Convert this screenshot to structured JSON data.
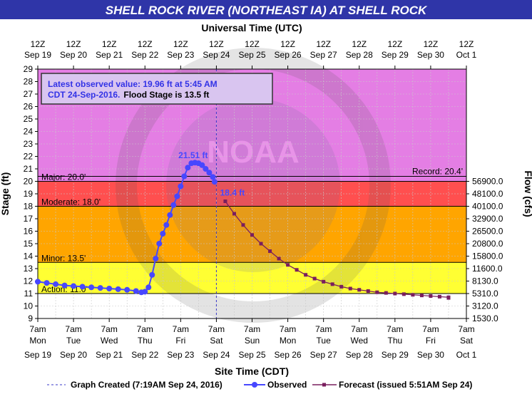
{
  "header": {
    "title": "SHELL ROCK RIVER (NORTHEAST IA) AT SHELL ROCK",
    "top_axis_title": "Universal Time (UTC)",
    "bottom_axis_title": "Site Time (CDT)",
    "left_axis_title": "Stage (ft)",
    "right_axis_title": "Flow (cfs)"
  },
  "info_box": {
    "line1": "Latest observed value: 19.96 ft at 5:45 AM",
    "line2": "CDT 24-Sep-2016.",
    "line2_bold": "Flood Stage is 13.5 ft"
  },
  "legend": {
    "created": "Graph Created (7:19AM Sep 24, 2016)",
    "observed": "Observed",
    "forecast": "Forecast (issued 5:51AM Sep 24)"
  },
  "colors": {
    "title_bg": "#2f35a8",
    "major": "#e47ee4",
    "moderate": "#ff4f4f",
    "minor": "#ffa500",
    "action": "#ffff33",
    "observed": "#4747ff",
    "forecast": "#7a1e5e"
  },
  "chart_data": {
    "type": "line",
    "ylim": [
      9,
      29
    ],
    "y_ticks": [
      9,
      10,
      11,
      12,
      13,
      14,
      15,
      16,
      17,
      18,
      19,
      20,
      21,
      22,
      23,
      24,
      25,
      26,
      27,
      28,
      29
    ],
    "xlim_days": [
      0,
      12
    ],
    "top_ticks": [
      {
        "top": "12Z",
        "bottom": "Sep 19"
      },
      {
        "top": "12Z",
        "bottom": "Sep 20"
      },
      {
        "top": "12Z",
        "bottom": "Sep 21"
      },
      {
        "top": "12Z",
        "bottom": "Sep 22"
      },
      {
        "top": "12Z",
        "bottom": "Sep 23"
      },
      {
        "top": "12Z",
        "bottom": "Sep 24"
      },
      {
        "top": "12Z",
        "bottom": "Sep 25"
      },
      {
        "top": "12Z",
        "bottom": "Sep 26"
      },
      {
        "top": "12Z",
        "bottom": "Sep 27"
      },
      {
        "top": "12Z",
        "bottom": "Sep 28"
      },
      {
        "top": "12Z",
        "bottom": "Sep 29"
      },
      {
        "top": "12Z",
        "bottom": "Sep 30"
      },
      {
        "top": "12Z",
        "bottom": "Oct  1"
      }
    ],
    "bottom_ticks": [
      {
        "time": "7am",
        "day": "Mon",
        "date": "Sep 19"
      },
      {
        "time": "7am",
        "day": "Tue",
        "date": "Sep 20"
      },
      {
        "time": "7am",
        "day": "Wed",
        "date": "Sep 21"
      },
      {
        "time": "7am",
        "day": "Thu",
        "date": "Sep 22"
      },
      {
        "time": "7am",
        "day": "Fri",
        "date": "Sep 23"
      },
      {
        "time": "7am",
        "day": "Sat",
        "date": "Sep 24"
      },
      {
        "time": "7am",
        "day": "Sun",
        "date": "Sep 25"
      },
      {
        "time": "7am",
        "day": "Mon",
        "date": "Sep 26"
      },
      {
        "time": "7am",
        "day": "Tue",
        "date": "Sep 27"
      },
      {
        "time": "7am",
        "day": "Wed",
        "date": "Sep 28"
      },
      {
        "time": "7am",
        "day": "Thu",
        "date": "Sep 29"
      },
      {
        "time": "7am",
        "day": "Fri",
        "date": "Sep 30"
      },
      {
        "time": "7am",
        "day": "Sat",
        "date": "Oct 1"
      }
    ],
    "flow_ticks": [
      {
        "stage": 20.0,
        "label": "56900.0"
      },
      {
        "stage": 19.0,
        "label": "48100.0"
      },
      {
        "stage": 18.0,
        "label": "40100.0"
      },
      {
        "stage": 17.0,
        "label": "32900.0"
      },
      {
        "stage": 16.0,
        "label": "26500.0"
      },
      {
        "stage": 15.0,
        "label": "20800.0"
      },
      {
        "stage": 14.0,
        "label": "15800.0"
      },
      {
        "stage": 13.0,
        "label": "11600.0"
      },
      {
        "stage": 12.0,
        "label": "8130.0"
      },
      {
        "stage": 11.0,
        "label": "5310.0"
      },
      {
        "stage": 10.0,
        "label": "3120.0"
      },
      {
        "stage": 9.0,
        "label": "1530.0"
      }
    ],
    "flood_categories": [
      {
        "name": "Major",
        "label": "Major: 20.0'",
        "stage": 20.0
      },
      {
        "name": "Moderate",
        "label": "Moderate: 18.0'",
        "stage": 18.0
      },
      {
        "name": "Minor",
        "label": "Minor: 13.5'",
        "stage": 13.5
      },
      {
        "name": "Action",
        "label": "Action: 11.0'",
        "stage": 11.0
      }
    ],
    "record": {
      "label": "Record: 20.4'",
      "stage": 20.4
    },
    "graph_created_day": 5.0,
    "peak_label": {
      "text": "21.51 ft",
      "day": 4.35,
      "value": 21.51
    },
    "forecast_label": {
      "text": "18.4 ft",
      "day": 5.25,
      "value": 18.4
    },
    "series": [
      {
        "name": "Observed",
        "points": [
          [
            0.0,
            11.95
          ],
          [
            0.25,
            11.85
          ],
          [
            0.5,
            11.75
          ],
          [
            0.75,
            11.65
          ],
          [
            1.0,
            11.6
          ],
          [
            1.25,
            11.55
          ],
          [
            1.5,
            11.5
          ],
          [
            1.75,
            11.45
          ],
          [
            2.0,
            11.4
          ],
          [
            2.25,
            11.35
          ],
          [
            2.5,
            11.3
          ],
          [
            2.75,
            11.2
          ],
          [
            2.9,
            11.1
          ],
          [
            3.0,
            11.15
          ],
          [
            3.1,
            11.5
          ],
          [
            3.2,
            12.5
          ],
          [
            3.3,
            13.8
          ],
          [
            3.4,
            15.0
          ],
          [
            3.5,
            15.8
          ],
          [
            3.6,
            16.5
          ],
          [
            3.7,
            17.3
          ],
          [
            3.8,
            18.1
          ],
          [
            3.9,
            18.8
          ],
          [
            4.0,
            19.6
          ],
          [
            4.1,
            20.4
          ],
          [
            4.2,
            21.1
          ],
          [
            4.3,
            21.45
          ],
          [
            4.4,
            21.5
          ],
          [
            4.5,
            21.45
          ],
          [
            4.6,
            21.3
          ],
          [
            4.7,
            21.0
          ],
          [
            4.8,
            20.7
          ],
          [
            4.9,
            20.35
          ],
          [
            4.95,
            19.96
          ]
        ]
      },
      {
        "name": "Forecast (issued 5:51AM Sep 24)",
        "points": [
          [
            5.25,
            18.4
          ],
          [
            5.5,
            17.4
          ],
          [
            5.75,
            16.5
          ],
          [
            6.0,
            15.7
          ],
          [
            6.25,
            15.0
          ],
          [
            6.5,
            14.4
          ],
          [
            6.75,
            13.8
          ],
          [
            7.0,
            13.3
          ],
          [
            7.25,
            12.9
          ],
          [
            7.5,
            12.5
          ],
          [
            7.75,
            12.2
          ],
          [
            8.0,
            11.95
          ],
          [
            8.25,
            11.75
          ],
          [
            8.5,
            11.55
          ],
          [
            8.75,
            11.4
          ],
          [
            9.0,
            11.3
          ],
          [
            9.25,
            11.2
          ],
          [
            9.5,
            11.1
          ],
          [
            9.75,
            11.05
          ],
          [
            10.0,
            11.0
          ],
          [
            10.25,
            10.95
          ],
          [
            10.5,
            10.9
          ],
          [
            10.75,
            10.85
          ],
          [
            11.0,
            10.8
          ],
          [
            11.25,
            10.75
          ],
          [
            11.5,
            10.7
          ],
          [
            11.5,
            10.65
          ]
        ]
      }
    ]
  }
}
